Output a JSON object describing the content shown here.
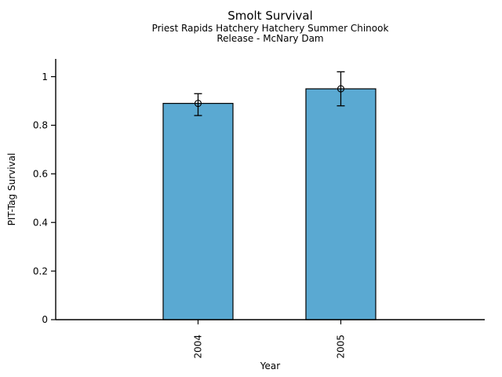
{
  "chart_data": {
    "type": "bar",
    "title": "Smolt Survival",
    "subtitle_line1": "Priest Rapids Hatchery Hatchery Summer Chinook",
    "subtitle_line2": "Release - McNary Dam",
    "xlabel": "Year",
    "ylabel": "PIT-Tag Survival",
    "categories": [
      "2004",
      "2005"
    ],
    "series": [
      {
        "name": "PIT-Tag Survival",
        "values": [
          0.89,
          0.95
        ]
      }
    ],
    "error_bars": {
      "low": [
        0.84,
        0.88
      ],
      "high": [
        0.93,
        1.02
      ]
    },
    "marker": "open-circle",
    "ytick_values": [
      0,
      0.2,
      0.4,
      0.6,
      0.8,
      1
    ],
    "ytick_labels": [
      "0",
      "0.2",
      "0.4",
      "0.6",
      "0.8",
      "1"
    ],
    "ylim": [
      0,
      1.07
    ],
    "xtick_rotation": 90,
    "grid": false,
    "legend": "none",
    "colors": {
      "bar_fill": "#5AA9D2",
      "bar_edge": "#000000",
      "error": "#000000",
      "axis": "#000000",
      "text": "#000000"
    }
  }
}
